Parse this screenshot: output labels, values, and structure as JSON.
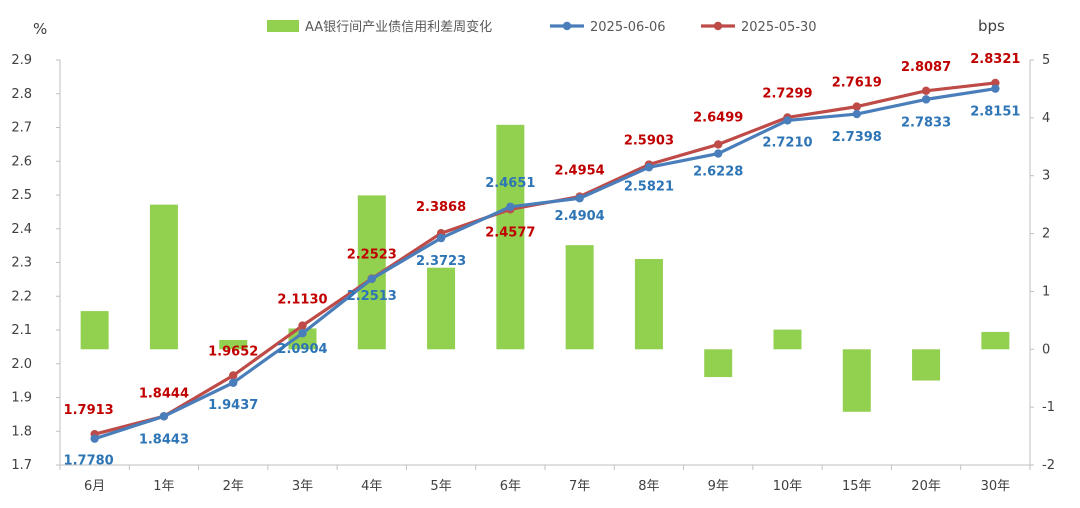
{
  "chart_data": {
    "type": "bar+line",
    "categories": [
      "6月",
      "1年",
      "2年",
      "3年",
      "4年",
      "5年",
      "6年",
      "7年",
      "8年",
      "9年",
      "10年",
      "15年",
      "20年",
      "30年"
    ],
    "left_axis": {
      "unit": "%",
      "ylim": [
        1.7,
        2.9
      ],
      "ticks": [
        "1.7",
        "1.8",
        "1.9",
        "2.0",
        "2.1",
        "2.2",
        "2.3",
        "2.4",
        "2.5",
        "2.6",
        "2.7",
        "2.8",
        "2.9"
      ]
    },
    "right_axis": {
      "unit": "bps",
      "ylim": [
        -2,
        5
      ],
      "ticks": [
        "-2",
        "-1",
        "0",
        "1",
        "2",
        "3",
        "4",
        "5"
      ]
    },
    "series": [
      {
        "name": "AA银行间产业债信用利差周变化",
        "type": "bar",
        "axis": "right",
        "color": "#92d050",
        "values": [
          0.66,
          2.5,
          0.16,
          0.36,
          2.66,
          1.41,
          3.88,
          1.8,
          1.56,
          -0.48,
          0.34,
          -1.08,
          -0.54,
          0.3
        ]
      },
      {
        "name": "2025-06-06",
        "type": "line",
        "axis": "left",
        "color": "#4a7ebb",
        "label_color": "#2e75b6",
        "values": [
          1.778,
          1.8443,
          1.9437,
          2.0904,
          2.2513,
          2.3723,
          2.4651,
          2.4904,
          2.5821,
          2.6228,
          2.721,
          2.7398,
          2.7833,
          2.8151
        ],
        "labels": [
          "1.7780",
          "1.8443",
          "1.9437",
          "2.0904",
          "2.2513",
          "2.3723",
          "2.4651",
          "2.4904",
          "2.5821",
          "2.6228",
          "2.7210",
          "2.7398",
          "2.7833",
          "2.8151"
        ]
      },
      {
        "name": "2025-05-30",
        "type": "line",
        "axis": "left",
        "color": "#be4b48",
        "label_color": "#c00000",
        "values": [
          1.7913,
          1.8444,
          1.9652,
          2.113,
          2.2523,
          2.3868,
          2.4577,
          2.4954,
          2.5903,
          2.6499,
          2.7299,
          2.7619,
          2.8087,
          2.8321
        ],
        "labels": [
          "1.7913",
          "1.8444",
          "1.9652",
          "2.1130",
          "2.2523",
          "2.3868",
          "2.4577",
          "2.4954",
          "2.5903",
          "2.6499",
          "2.7299",
          "2.7619",
          "2.8087",
          "2.8321"
        ]
      }
    ],
    "legend_position": "top"
  }
}
